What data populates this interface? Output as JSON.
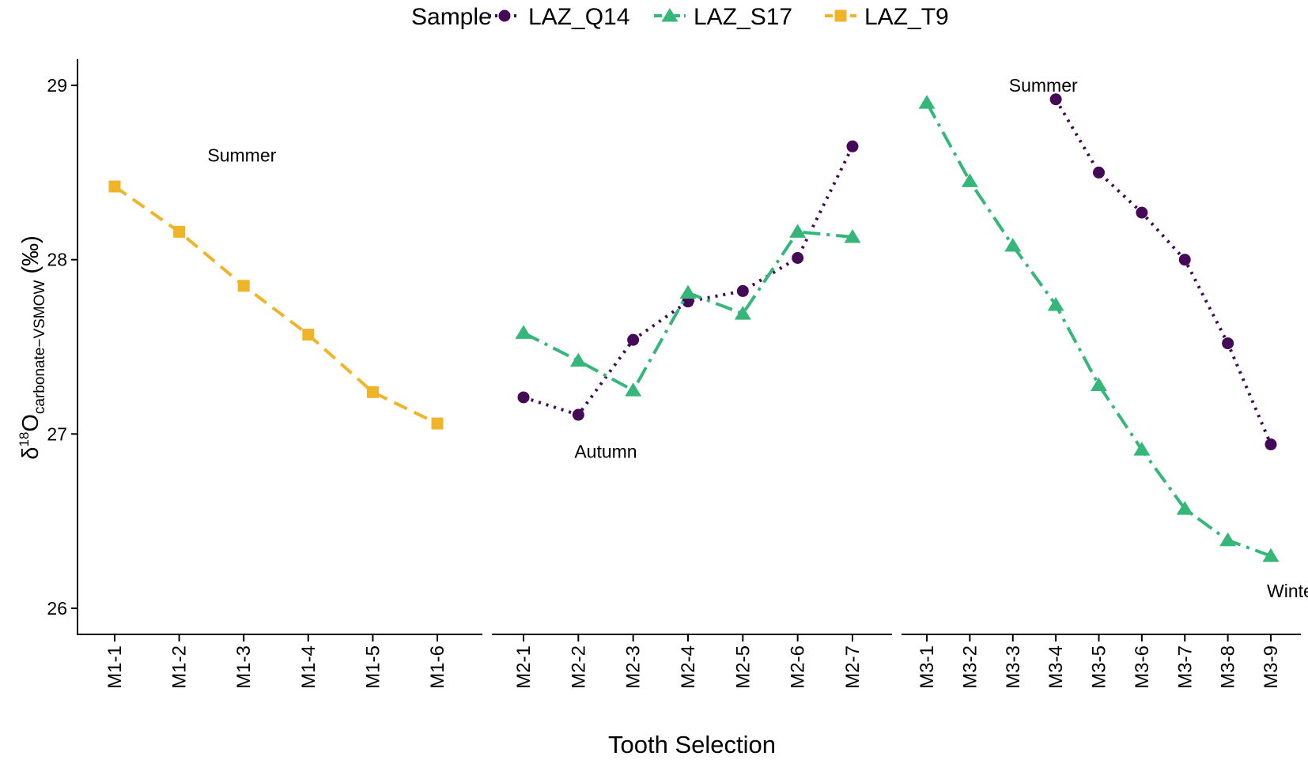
{
  "chart_data": {
    "type": "line",
    "title": "",
    "xlabel": "Tooth Selection",
    "ylabel": {
      "prefix": "δ",
      "superscript": "18",
      "main": "O",
      "subscript": "carbonate−VSMOW",
      "suffix": " (‰)"
    },
    "ylim": [
      25.85,
      29.15
    ],
    "yticks": [
      26,
      27,
      28,
      29
    ],
    "grid": false,
    "legend": {
      "title": "Sample",
      "placement": "top",
      "entries": [
        "LAZ_Q14",
        "LAZ_S17",
        "LAZ_T9"
      ]
    },
    "panels": [
      {
        "categories": [
          "M1-1",
          "M1-2",
          "M1-3",
          "M1-4",
          "M1-5",
          "M1-6"
        ],
        "series": [
          {
            "name": "LAZ_T9",
            "values": [
              28.42,
              28.16,
              27.85,
              27.57,
              27.24,
              27.06
            ]
          }
        ],
        "annotations": [
          {
            "text": "Summer",
            "x": 1.5,
            "y": 28.6
          }
        ]
      },
      {
        "categories": [
          "M2-1",
          "M2-2",
          "M2-3",
          "M2-4",
          "M2-5",
          "M2-6",
          "M2-7"
        ],
        "series": [
          {
            "name": "LAZ_Q14",
            "values": [
              27.21,
              27.11,
              27.54,
              27.76,
              27.82,
              28.01,
              28.65
            ]
          },
          {
            "name": "LAZ_S17",
            "values": [
              27.58,
              27.42,
              27.25,
              27.81,
              27.69,
              28.16,
              28.13
            ]
          }
        ],
        "annotations": [
          {
            "text": "Autumn",
            "x": 1.0,
            "y": 26.9
          }
        ]
      },
      {
        "categories": [
          "M3-1",
          "M3-2",
          "M3-3",
          "M3-4",
          "M3-5",
          "M3-6",
          "M3-7",
          "M3-8",
          "M3-9"
        ],
        "series": [
          {
            "name": "LAZ_Q14",
            "values": [
              null,
              null,
              null,
              28.92,
              28.5,
              28.27,
              28.0,
              27.52,
              26.94
            ]
          },
          {
            "name": "LAZ_S17",
            "values": [
              28.9,
              28.45,
              28.08,
              27.74,
              27.28,
              26.91,
              26.57,
              26.39,
              26.3
            ]
          }
        ],
        "annotations": [
          {
            "text": "Summer",
            "x": 2.0,
            "y": 29.0
          },
          {
            "text": "Winter",
            "x": 8.0,
            "y": 26.1
          }
        ]
      }
    ],
    "styles": {
      "LAZ_Q14": {
        "color": "#440a57",
        "marker": "circle",
        "dash": "dotted"
      },
      "LAZ_S17": {
        "color": "#35b779",
        "marker": "triangle",
        "dash": "dashdot"
      },
      "LAZ_T9": {
        "color": "#f0b429",
        "marker": "square",
        "dash": "dashed"
      }
    }
  }
}
